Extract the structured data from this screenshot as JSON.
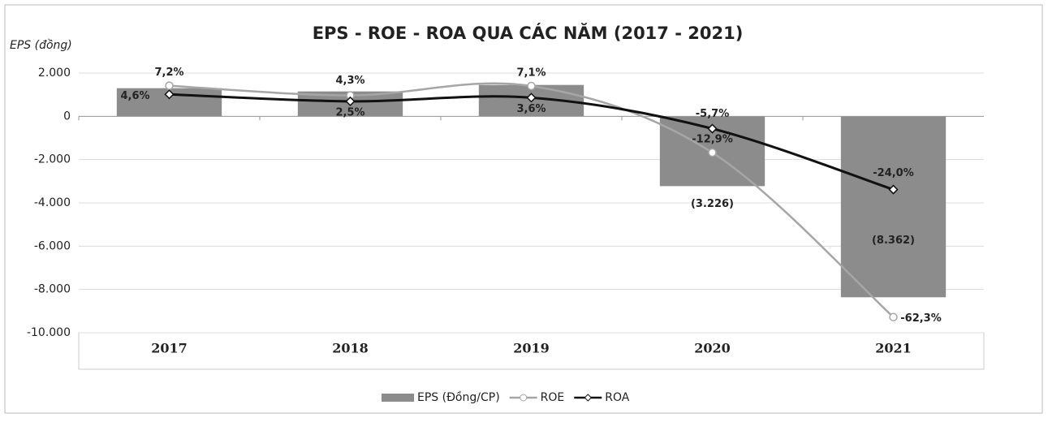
{
  "chart_data": {
    "type": "bar-line",
    "title": "EPS - ROE - ROA  QUA CÁC NĂM (2017 - 2021)",
    "y_label": "EPS (đồng)",
    "categories": [
      "2017",
      "2018",
      "2019",
      "2020",
      "2021"
    ],
    "ylim": [
      -10000,
      2000
    ],
    "yticks": [
      {
        "value": 2000,
        "label": "2.000"
      },
      0,
      {
        "value": -2000,
        "label": "-2.000"
      },
      {
        "value": -4000,
        "label": "-4.000"
      },
      {
        "value": -6000,
        "label": "-6.000"
      },
      {
        "value": -8000,
        "label": "-8.000"
      },
      {
        "value": -10000,
        "label": "-10.000"
      }
    ],
    "y2lim": [
      -67,
      11
    ],
    "grid": true,
    "legend": "bottom",
    "series": [
      {
        "name": "EPS (Đồng/CP)",
        "type": "bar",
        "color": "#8c8c8c",
        "values": [
          1300,
          1150,
          1450,
          -3226,
          -8362
        ],
        "value_labels": [
          null,
          null,
          null,
          "(3.226)",
          "(8.362)"
        ]
      },
      {
        "name": "ROE",
        "type": "line",
        "axis": "y2",
        "color": "#a6a6a6",
        "marker": "circle",
        "values": [
          7.2,
          4.3,
          7.1,
          -12.9,
          -62.3
        ],
        "value_labels": [
          "7,2%",
          "4,3%",
          "7,1%",
          "-12,9%",
          "-62,3%"
        ]
      },
      {
        "name": "ROA",
        "type": "line",
        "axis": "y2",
        "color": "#111111",
        "marker": "diamond",
        "values": [
          4.6,
          2.5,
          3.6,
          -5.7,
          -24.0
        ],
        "value_labels": [
          "4,6%",
          "2,5%",
          "3,6%",
          "-5,7%",
          "-24,0%"
        ]
      }
    ]
  }
}
